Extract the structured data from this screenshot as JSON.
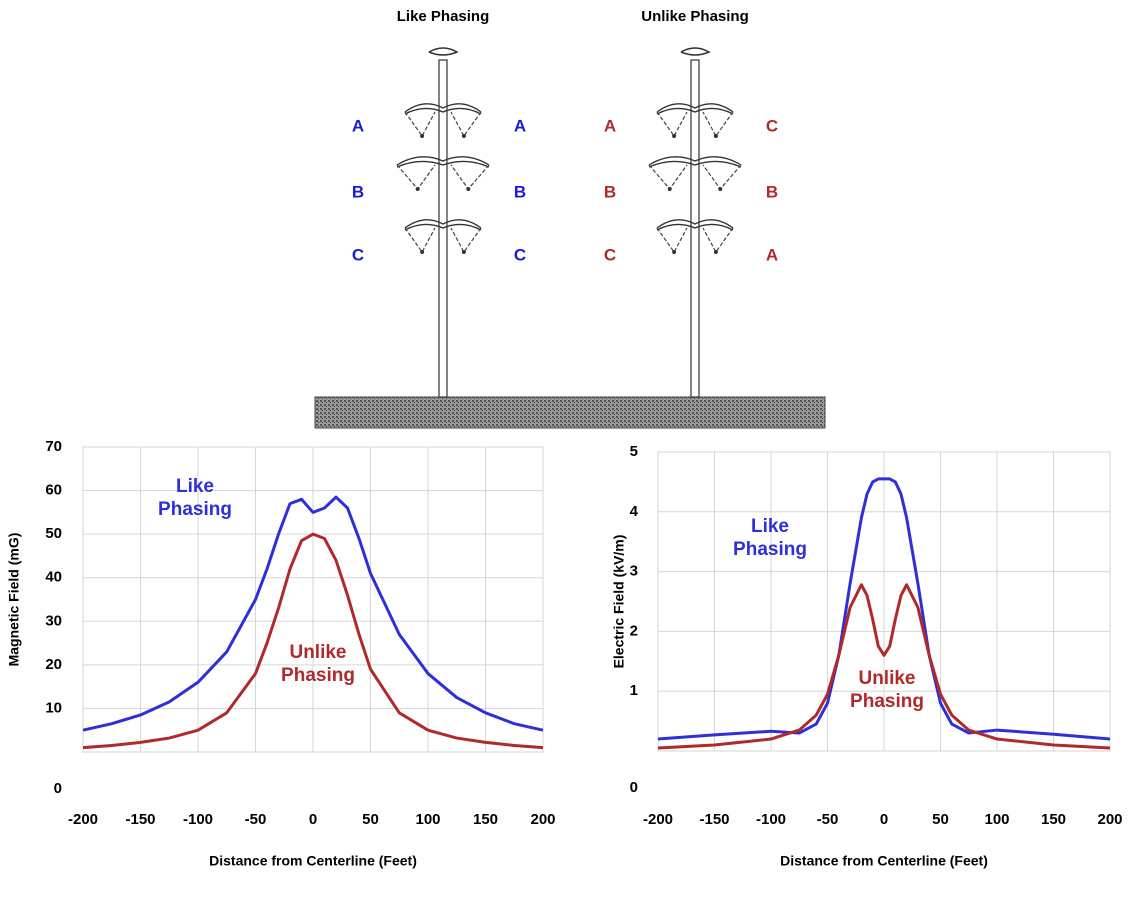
{
  "diagram": {
    "towers": [
      {
        "title": "Like Phasing",
        "left": [
          "A",
          "B",
          "C"
        ],
        "right": [
          "A",
          "B",
          "C"
        ],
        "color": "#1a1ad6"
      },
      {
        "title": "Unlike Phasing",
        "left": [
          "A",
          "B",
          "C"
        ],
        "right": [
          "C",
          "B",
          "A"
        ],
        "color": "#b02a2a"
      }
    ]
  },
  "chart_data": [
    {
      "type": "line",
      "xlabel": "Distance from Centerline (Feet)",
      "ylabel": "Magnetic Field (mG)",
      "x": [
        -200,
        -175,
        -150,
        -125,
        -100,
        -75,
        -50,
        -40,
        -30,
        -20,
        -10,
        0,
        10,
        20,
        30,
        40,
        50,
        75,
        100,
        125,
        150,
        175,
        200
      ],
      "series": [
        {
          "name": "Like Phasing",
          "color": "#2f2fd8",
          "values": [
            5,
            6.5,
            8.5,
            11.5,
            16,
            23,
            35,
            42,
            50,
            57,
            58,
            55,
            56,
            58.5,
            56,
            49,
            41,
            27,
            18,
            12.5,
            9,
            6.5,
            5
          ]
        },
        {
          "name": "Unlike Phasing",
          "color": "#b02a2a",
          "values": [
            1,
            1.5,
            2.2,
            3.2,
            5,
            9,
            18,
            25,
            33,
            42,
            48.5,
            50,
            49,
            44,
            36,
            27,
            19,
            9,
            5,
            3.2,
            2.2,
            1.5,
            1
          ]
        }
      ],
      "xlim": [
        -200,
        200
      ],
      "xticks": [
        -200,
        -150,
        -100,
        -50,
        0,
        50,
        100,
        150,
        200
      ],
      "ylim": [
        0,
        70
      ],
      "yticks": [
        0,
        10,
        20,
        30,
        40,
        50,
        60,
        70
      ],
      "grid": true
    },
    {
      "type": "line",
      "xlabel": "Distance from Centerline (Feet)",
      "ylabel": "Electric  Field (kV/m)",
      "x": [
        -200,
        -150,
        -100,
        -75,
        -60,
        -50,
        -40,
        -30,
        -20,
        -15,
        -10,
        -5,
        0,
        5,
        10,
        15,
        20,
        30,
        40,
        50,
        60,
        75,
        100,
        150,
        200
      ],
      "series": [
        {
          "name": "Like Phasing",
          "color": "#2f2fd8",
          "values": [
            0.2,
            0.27,
            0.33,
            0.3,
            0.45,
            0.8,
            1.6,
            2.8,
            3.9,
            4.3,
            4.5,
            4.55,
            4.55,
            4.55,
            4.5,
            4.3,
            3.9,
            2.8,
            1.6,
            0.8,
            0.45,
            0.3,
            0.35,
            0.28,
            0.2
          ]
        },
        {
          "name": "Unlike Phasing",
          "color": "#b02a2a",
          "values": [
            0.05,
            0.1,
            0.2,
            0.35,
            0.6,
            0.95,
            1.6,
            2.4,
            2.78,
            2.6,
            2.2,
            1.75,
            1.6,
            1.75,
            2.2,
            2.6,
            2.78,
            2.4,
            1.6,
            0.95,
            0.6,
            0.35,
            0.2,
            0.1,
            0.05
          ]
        }
      ],
      "xlim": [
        -200,
        200
      ],
      "xticks": [
        -200,
        -150,
        -100,
        -50,
        0,
        50,
        100,
        150,
        200
      ],
      "ylim": [
        0,
        5
      ],
      "yticks": [
        0,
        1,
        2,
        3,
        4,
        5
      ],
      "grid": true
    }
  ]
}
